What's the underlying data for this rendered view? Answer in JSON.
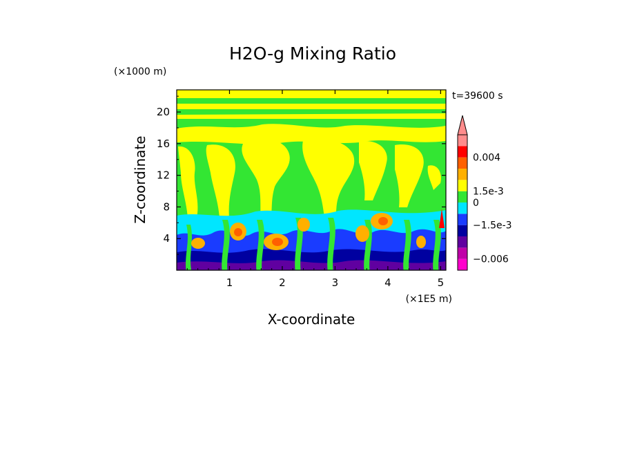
{
  "chart_data": {
    "type": "heatmap",
    "title": "H2O-g Mixing Ratio",
    "xlabel": "X-coordinate",
    "ylabel": "Z-coordinate",
    "x_unit": "(×1E5 m)",
    "y_unit": "(×1000 m)",
    "time_label": "t=39600 s",
    "xlim": [
      0,
      5.1
    ],
    "ylim": [
      0,
      22.8
    ],
    "x_ticks": [
      1,
      2,
      3,
      4,
      5
    ],
    "y_ticks": [
      4,
      8,
      12,
      16,
      20
    ],
    "x_tick_labels": [
      "1",
      "2",
      "3",
      "4",
      "5"
    ],
    "y_tick_labels": [
      "4",
      "8",
      "12",
      "16",
      "20"
    ],
    "colorbar": {
      "labels": [
        "0.004",
        "1.5e-3",
        "0",
        "−1.5e-3",
        "−0.006"
      ],
      "label_values": [
        0.004,
        0.0015,
        0,
        -0.0015,
        -0.006
      ],
      "bands": [
        {
          "color": "#ff00cc"
        },
        {
          "color": "#c000a8"
        },
        {
          "color": "#6000a0"
        },
        {
          "color": "#0000a0"
        },
        {
          "color": "#1a3cff"
        },
        {
          "color": "#00e6ff"
        },
        {
          "color": "#33e633"
        },
        {
          "color": "#ffff00"
        },
        {
          "color": "#ffb000"
        },
        {
          "color": "#ff6000"
        },
        {
          "color": "#ff0000"
        },
        {
          "color": "#ff8c8c"
        }
      ],
      "extend": "top"
    }
  }
}
